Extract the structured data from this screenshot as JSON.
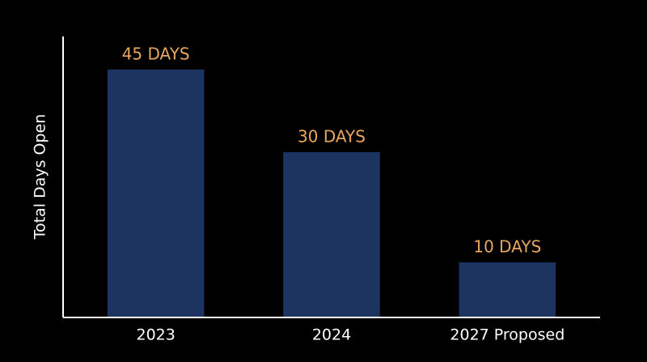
{
  "chart_data": {
    "type": "bar",
    "y_label": "Total Days Open",
    "categories": [
      "2023",
      "2024",
      "2027 Proposed"
    ],
    "values": [
      45,
      30,
      10
    ],
    "value_labels": [
      "45 DAYS",
      "30 DAYS",
      "10 DAYS"
    ],
    "color": "#1d3461",
    "label_color": "#e8a65e",
    "ylim": [
      0,
      51
    ]
  }
}
